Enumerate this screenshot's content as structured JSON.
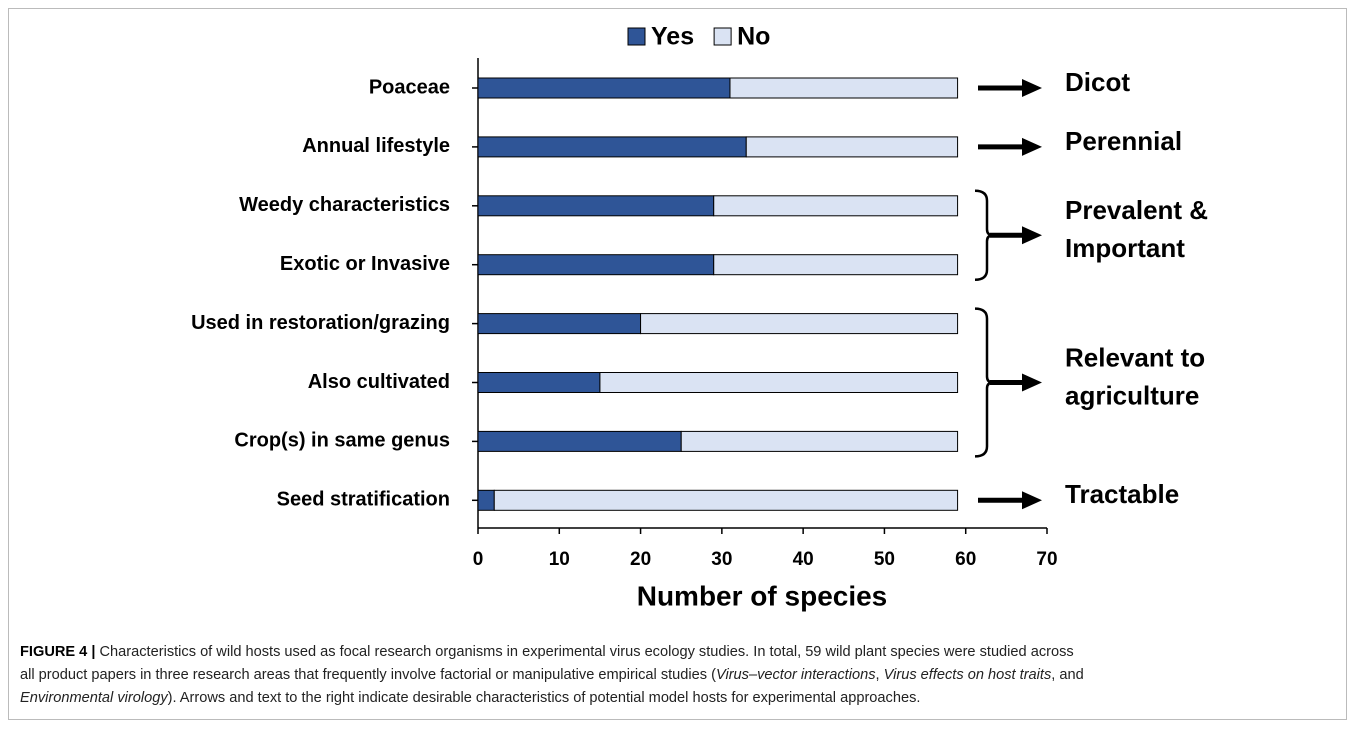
{
  "chart_data": {
    "type": "stacked-barh",
    "categories": [
      "Poaceae",
      "Annual lifestyle",
      "Weedy characteristics",
      "Exotic or Invasive",
      "Used in restoration/grazing",
      "Also cultivated",
      "Crop(s) in same genus",
      "Seed stratification"
    ],
    "series": [
      {
        "name": "Yes",
        "color": "#2f5597",
        "values": [
          31,
          33,
          29,
          29,
          20,
          15,
          25,
          2
        ]
      },
      {
        "name": "No",
        "color": "#dae3f3",
        "values": [
          28,
          26,
          30,
          30,
          39,
          44,
          34,
          57
        ]
      }
    ],
    "xlabel": "Number of species",
    "xlim": [
      0,
      70
    ],
    "xticks": [
      0,
      10,
      20,
      30,
      40,
      50,
      60,
      70
    ],
    "legend": "top",
    "annotations": [
      {
        "lines": [
          "Dicot"
        ]
      },
      {
        "lines": [
          "Perennial"
        ]
      },
      {
        "lines": [
          "Prevalent &",
          "Important"
        ]
      },
      {
        "lines": [
          "Relevant to",
          "agriculture"
        ]
      },
      {
        "lines": [
          "Tractable"
        ]
      }
    ],
    "caption": {
      "label": "FIGURE 4 |",
      "lines": [
        [
          {
            "text": " Characteristics of wild hosts used as focal research organisms in experimental virus ecology studies. In total, 59 wild plant species were studied across",
            "italic": false
          }
        ],
        [
          {
            "text": "all product papers in three research areas that frequently involve factorial or manipulative empirical studies (",
            "italic": false
          },
          {
            "text": "Virus–vector interactions",
            "italic": true
          },
          {
            "text": ", ",
            "italic": false
          },
          {
            "text": "Virus effects on host traits",
            "italic": true
          },
          {
            "text": ", and",
            "italic": false
          }
        ],
        [
          {
            "text": "Environmental virology",
            "italic": true
          },
          {
            "text": "). Arrows and text to the right indicate desirable characteristics of potential model hosts for experimental approaches.",
            "italic": false
          }
        ]
      ]
    }
  }
}
